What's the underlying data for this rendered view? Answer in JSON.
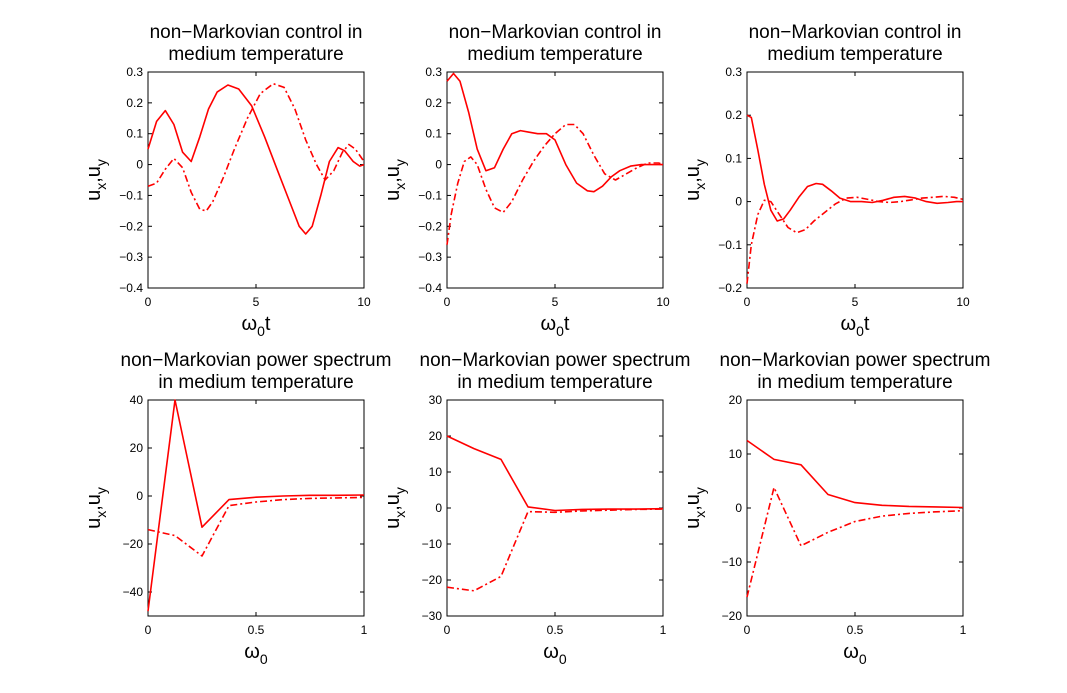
{
  "chart_data": [
    {
      "type": "line",
      "title_line1": "non−Markovian control in",
      "title_line2": "medium temperature",
      "xlabel": {
        "main": "ω",
        "sub": "0",
        "suffix": "t"
      },
      "ylabel": {
        "a": "u",
        "a_sub": "x",
        "sep": ",",
        "b": "u",
        "b_sub": "y"
      },
      "xlim": [
        0,
        10
      ],
      "ylim": [
        -0.4,
        0.3
      ],
      "xticks": [
        0,
        5,
        10
      ],
      "xtick_labels": [
        "0",
        "5",
        "10"
      ],
      "yticks": [
        -0.4,
        -0.3,
        -0.2,
        -0.1,
        0,
        0.1,
        0.2,
        0.3
      ],
      "ytick_labels": [
        "−0.4",
        "−0.3",
        "−0.2",
        "−0.1",
        "0",
        "0.1",
        "0.2",
        "0.3"
      ],
      "series": [
        {
          "style": "solid",
          "color": "#ff0000",
          "x": [
            0,
            0.4,
            0.8,
            1.2,
            1.6,
            2.0,
            2.4,
            2.8,
            3.2,
            3.7,
            4.2,
            4.8,
            5.4,
            6.0,
            6.5,
            7.0,
            7.3,
            7.6,
            8.0,
            8.4,
            8.8,
            9.1,
            9.5,
            9.8,
            10
          ],
          "y": [
            0.05,
            0.14,
            0.175,
            0.13,
            0.04,
            0.01,
            0.09,
            0.18,
            0.235,
            0.258,
            0.245,
            0.19,
            0.09,
            -0.02,
            -0.11,
            -0.2,
            -0.225,
            -0.2,
            -0.1,
            0.01,
            0.055,
            0.045,
            0.01,
            -0.005,
            0.0
          ]
        },
        {
          "style": "dashdot",
          "color": "#ff0000",
          "x": [
            0,
            0.4,
            0.8,
            1.2,
            1.6,
            2.0,
            2.4,
            2.7,
            3.0,
            3.5,
            4.0,
            4.6,
            5.2,
            5.8,
            6.3,
            6.8,
            7.3,
            7.8,
            8.2,
            8.6,
            9.0,
            9.3,
            9.6,
            10
          ],
          "y": [
            -0.07,
            -0.06,
            -0.015,
            0.02,
            -0.01,
            -0.09,
            -0.145,
            -0.15,
            -0.12,
            -0.04,
            0.05,
            0.15,
            0.23,
            0.262,
            0.25,
            0.18,
            0.08,
            0.0,
            -0.05,
            -0.02,
            0.04,
            0.065,
            0.05,
            0.01
          ]
        }
      ]
    },
    {
      "type": "line",
      "title_line1": "non−Markovian control in",
      "title_line2": "medium temperature",
      "xlabel": {
        "main": "ω",
        "sub": "0",
        "suffix": "t"
      },
      "ylabel": {
        "a": "u",
        "a_sub": "x",
        "sep": ",",
        "b": "u",
        "b_sub": "y"
      },
      "xlim": [
        0,
        10
      ],
      "ylim": [
        -0.4,
        0.3
      ],
      "xticks": [
        0,
        5,
        10
      ],
      "xtick_labels": [
        "0",
        "5",
        "10"
      ],
      "yticks": [
        -0.4,
        -0.3,
        -0.2,
        -0.1,
        0,
        0.1,
        0.2,
        0.3
      ],
      "ytick_labels": [
        "−0.4",
        "−0.3",
        "−0.2",
        "−0.1",
        "0",
        "0.1",
        "0.2",
        "0.3"
      ],
      "series": [
        {
          "style": "solid",
          "color": "#ff0000",
          "x": [
            0,
            0.3,
            0.6,
            1.0,
            1.4,
            1.8,
            2.2,
            2.6,
            3.0,
            3.4,
            3.8,
            4.2,
            4.6,
            5.0,
            5.5,
            6.0,
            6.5,
            6.8,
            7.2,
            7.6,
            8.0,
            8.5,
            9.0,
            9.5,
            10
          ],
          "y": [
            0.27,
            0.295,
            0.27,
            0.17,
            0.05,
            -0.02,
            -0.01,
            0.05,
            0.1,
            0.11,
            0.105,
            0.1,
            0.1,
            0.08,
            0.0,
            -0.06,
            -0.085,
            -0.088,
            -0.07,
            -0.04,
            -0.02,
            -0.005,
            0.0,
            0.0,
            0.0
          ]
        },
        {
          "style": "dashdot",
          "color": "#ff0000",
          "x": [
            0,
            0.2,
            0.5,
            0.8,
            1.1,
            1.4,
            1.8,
            2.2,
            2.6,
            3.0,
            3.5,
            4.0,
            4.5,
            5.0,
            5.5,
            5.9,
            6.3,
            6.8,
            7.3,
            7.8,
            8.3,
            8.8,
            9.3,
            9.8,
            10
          ],
          "y": [
            -0.26,
            -0.16,
            -0.06,
            0.01,
            0.025,
            0.0,
            -0.08,
            -0.14,
            -0.155,
            -0.12,
            -0.05,
            0.01,
            0.06,
            0.1,
            0.13,
            0.13,
            0.1,
            0.03,
            -0.03,
            -0.05,
            -0.03,
            -0.01,
            0.005,
            0.005,
            0.0
          ]
        }
      ]
    },
    {
      "type": "line",
      "title_line1": "non−Markovian control in",
      "title_line2": "medium temperature",
      "xlabel": {
        "main": "ω",
        "sub": "0",
        "suffix": "t"
      },
      "ylabel": {
        "a": "u",
        "a_sub": "x",
        "sep": ",",
        "b": "u",
        "b_sub": "y"
      },
      "xlim": [
        0,
        10
      ],
      "ylim": [
        -0.2,
        0.3
      ],
      "xticks": [
        0,
        5,
        10
      ],
      "xtick_labels": [
        "0",
        "5",
        "10"
      ],
      "yticks": [
        -0.2,
        -0.1,
        0,
        0.1,
        0.2,
        0.3
      ],
      "ytick_labels": [
        "−0.2",
        "−0.1",
        "0",
        "0.1",
        "0.2",
        "0.3"
      ],
      "series": [
        {
          "style": "solid",
          "color": "#ff0000",
          "x": [
            0,
            0.2,
            0.5,
            0.8,
            1.1,
            1.4,
            1.7,
            2.0,
            2.4,
            2.8,
            3.2,
            3.5,
            3.9,
            4.3,
            4.8,
            5.3,
            5.8,
            6.3,
            6.8,
            7.3,
            7.8,
            8.3,
            8.8,
            9.3,
            9.7,
            10
          ],
          "y": [
            0.2,
            0.195,
            0.12,
            0.04,
            -0.02,
            -0.045,
            -0.04,
            -0.02,
            0.01,
            0.035,
            0.042,
            0.04,
            0.025,
            0.008,
            0.0,
            0.0,
            -0.002,
            0.003,
            0.01,
            0.012,
            0.008,
            0.0,
            -0.004,
            -0.002,
            0.0,
            0.0
          ]
        },
        {
          "style": "dashdot",
          "color": "#ff0000",
          "x": [
            0,
            0.2,
            0.5,
            0.8,
            1.1,
            1.5,
            1.9,
            2.3,
            2.7,
            3.1,
            3.6,
            4.1,
            4.6,
            5.1,
            5.6,
            6.1,
            6.6,
            7.1,
            7.6,
            8.1,
            8.6,
            9.1,
            9.6,
            10
          ],
          "y": [
            -0.19,
            -0.1,
            -0.03,
            0.003,
            0.0,
            -0.03,
            -0.06,
            -0.072,
            -0.065,
            -0.045,
            -0.025,
            -0.005,
            0.008,
            0.01,
            0.005,
            0.0,
            -0.002,
            0.0,
            0.004,
            0.008,
            0.01,
            0.012,
            0.01,
            0.005
          ]
        }
      ]
    },
    {
      "type": "line",
      "title_line1": "non−Markovian power spectrum",
      "title_line2": "in medium temperature",
      "xlabel": {
        "main": "ω",
        "sub": "0",
        "suffix": ""
      },
      "ylabel": {
        "a": "u",
        "a_sub": "x",
        "sep": ",",
        "b": "u",
        "b_sub": "y"
      },
      "xlim": [
        0,
        1
      ],
      "ylim": [
        -50,
        40
      ],
      "xticks": [
        0,
        0.5,
        1
      ],
      "xtick_labels": [
        "0",
        "0.5",
        "1"
      ],
      "yticks": [
        -40,
        -20,
        0,
        20,
        40
      ],
      "ytick_labels": [
        "−40",
        "−20",
        "0",
        "20",
        "40"
      ],
      "series": [
        {
          "style": "solid",
          "color": "#ff0000",
          "x": [
            0,
            0.125,
            0.25,
            0.375,
            0.5,
            0.625,
            0.75,
            0.875,
            1.0
          ],
          "y": [
            -48,
            40,
            -13,
            -1.5,
            -0.5,
            0,
            0.3,
            0.3,
            0.4
          ]
        },
        {
          "style": "dashdot",
          "color": "#ff0000",
          "x": [
            0,
            0.125,
            0.25,
            0.375,
            0.5,
            0.625,
            0.75,
            0.875,
            1.0
          ],
          "y": [
            -14,
            -16.5,
            -25,
            -4,
            -2.5,
            -1.5,
            -1.0,
            -0.8,
            -0.6
          ]
        }
      ]
    },
    {
      "type": "line",
      "title_line1": "non−Markovian power spectrum",
      "title_line2": "in medium temperature",
      "xlabel": {
        "main": "ω",
        "sub": "0",
        "suffix": ""
      },
      "ylabel": {
        "a": "u",
        "a_sub": "x",
        "sep": ",",
        "b": "u",
        "b_sub": "y"
      },
      "xlim": [
        0,
        1
      ],
      "ylim": [
        -30,
        30
      ],
      "xticks": [
        0,
        0.5,
        1
      ],
      "xtick_labels": [
        "0",
        "0.5",
        "1"
      ],
      "yticks": [
        -30,
        -20,
        -10,
        0,
        10,
        20,
        30
      ],
      "ytick_labels": [
        "−30",
        "−20",
        "−10",
        "0",
        "10",
        "20",
        "30"
      ],
      "series": [
        {
          "style": "solid",
          "color": "#ff0000",
          "x": [
            0,
            0.125,
            0.25,
            0.375,
            0.5,
            0.625,
            0.75,
            0.875,
            1.0
          ],
          "y": [
            20,
            16.5,
            13.5,
            0.3,
            -0.7,
            -0.4,
            -0.3,
            -0.3,
            -0.2
          ]
        },
        {
          "style": "dashdot",
          "color": "#ff0000",
          "x": [
            0,
            0.125,
            0.25,
            0.375,
            0.5,
            0.625,
            0.75,
            0.875,
            1.0
          ],
          "y": [
            -22,
            -23,
            -19,
            -1,
            -1.2,
            -0.8,
            -0.6,
            -0.4,
            -0.3
          ]
        }
      ]
    },
    {
      "type": "line",
      "title_line1": "non−Markovian power spectrum",
      "title_line2": "in medium temperature",
      "xlabel": {
        "main": "ω",
        "sub": "0",
        "suffix": ""
      },
      "ylabel": {
        "a": "u",
        "a_sub": "x",
        "sep": ",",
        "b": "u",
        "b_sub": "y"
      },
      "xlim": [
        0,
        1
      ],
      "ylim": [
        -20,
        20
      ],
      "xticks": [
        0,
        0.5,
        1
      ],
      "xtick_labels": [
        "0",
        "0.5",
        "1"
      ],
      "yticks": [
        -20,
        -10,
        0,
        10,
        20
      ],
      "ytick_labels": [
        "−20",
        "−10",
        "0",
        "10",
        "20"
      ],
      "series": [
        {
          "style": "solid",
          "color": "#ff0000",
          "x": [
            0,
            0.125,
            0.25,
            0.375,
            0.5,
            0.625,
            0.75,
            0.875,
            1.0
          ],
          "y": [
            12.5,
            9,
            8,
            2.5,
            1,
            0.5,
            0.3,
            0.2,
            0.1
          ]
        },
        {
          "style": "dashdot",
          "color": "#ff0000",
          "x": [
            0,
            0.125,
            0.25,
            0.375,
            0.5,
            0.625,
            0.75,
            0.875,
            1.0
          ],
          "y": [
            -16.5,
            3.8,
            -7,
            -4.5,
            -2.5,
            -1.5,
            -1.0,
            -0.7,
            -0.5
          ]
        }
      ]
    }
  ]
}
